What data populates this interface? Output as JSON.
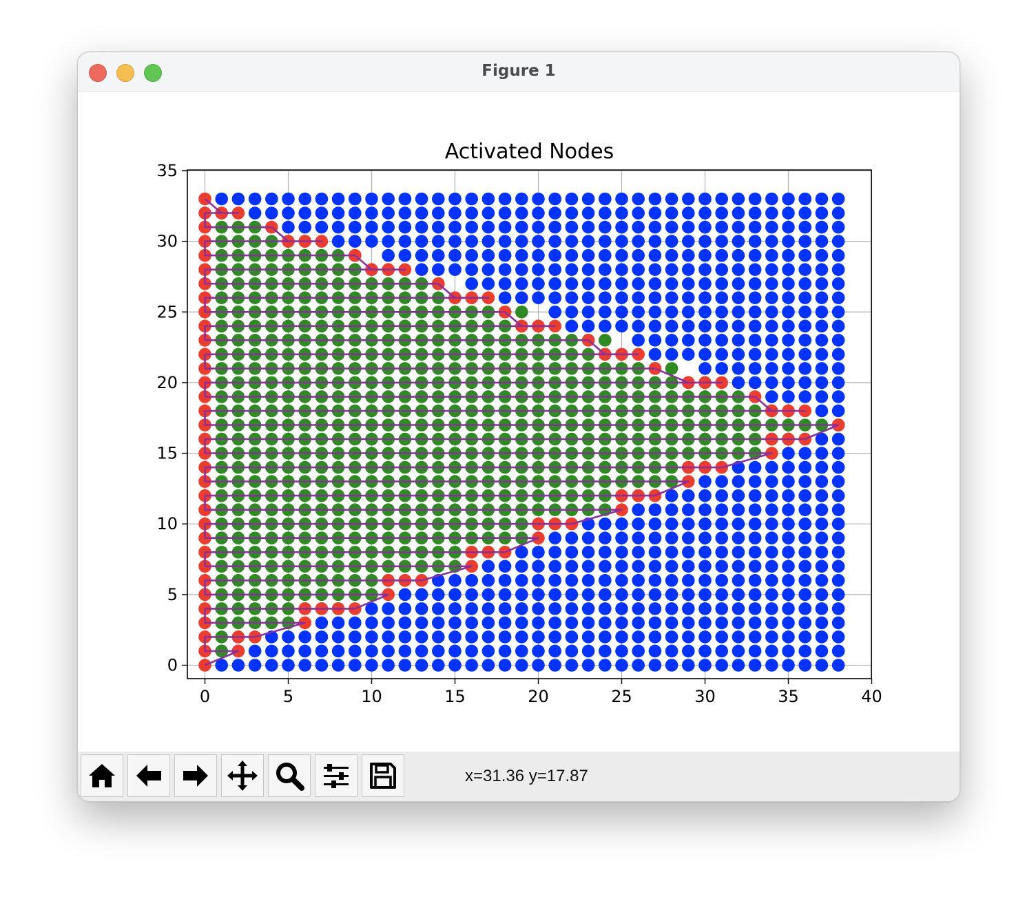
{
  "window": {
    "title": "Figure 1"
  },
  "toolbar": {
    "buttons": [
      {
        "name": "home-button",
        "icon": "home-icon",
        "tooltip": "Reset original view"
      },
      {
        "name": "back-button",
        "icon": "arrow-left-icon",
        "tooltip": "Back to previous view"
      },
      {
        "name": "forward-button",
        "icon": "arrow-right-icon",
        "tooltip": "Forward to next view"
      },
      {
        "name": "pan-button",
        "icon": "move-icon",
        "tooltip": "Pan axes"
      },
      {
        "name": "zoom-button",
        "icon": "magnifier-icon",
        "tooltip": "Zoom to rectangle"
      },
      {
        "name": "configure-button",
        "icon": "sliders-icon",
        "tooltip": "Configure subplots"
      },
      {
        "name": "save-button",
        "icon": "floppy-disk-icon",
        "tooltip": "Save the figure"
      }
    ],
    "coordinates": "x=31.36 y=17.87"
  },
  "colors": {
    "blue": "#0433ff",
    "green": "#2e8b22",
    "red": "#ee3c2c",
    "path": "#8b2fa0",
    "grid": "#b0b0b0"
  },
  "chart_data": {
    "type": "scatter",
    "title": "Activated Nodes",
    "xlabel": "",
    "ylabel": "",
    "xlim": [
      -1,
      40
    ],
    "ylim": [
      -1,
      35
    ],
    "xticks": [
      0,
      5,
      10,
      15,
      20,
      25,
      30,
      35,
      40
    ],
    "yticks": [
      0,
      5,
      10,
      15,
      20,
      25,
      30,
      35
    ],
    "grid": true,
    "grid_x": [
      0,
      38
    ],
    "grid_y": [
      0,
      33
    ],
    "series": [
      {
        "color": "blue",
        "description": "all nodes (0..38 x 0..33)"
      },
      {
        "color": "green",
        "description": "interior activated nodes (x < boundary_x[y])"
      },
      {
        "color": "red",
        "description": "boundary path nodes"
      }
    ],
    "boundary_x": [
      0,
      2,
      3,
      6,
      9,
      11,
      13,
      16,
      18,
      20,
      22,
      25,
      27,
      29,
      31,
      34,
      36,
      38,
      36,
      33,
      31,
      29,
      26,
      25,
      21,
      20,
      17,
      15,
      12,
      10,
      7,
      4,
      2,
      0
    ],
    "row_start_x": [
      1,
      1,
      3,
      7,
      10,
      12,
      14,
      17,
      19,
      21,
      23,
      26,
      28,
      30,
      32,
      35,
      37,
      38,
      37,
      34,
      32,
      30,
      27,
      26,
      22,
      21,
      18,
      16,
      13,
      11,
      8,
      5,
      3,
      1
    ],
    "path": [
      [
        0,
        0
      ],
      [
        2,
        1
      ],
      [
        0,
        1
      ],
      [
        0,
        2
      ],
      [
        2,
        2
      ],
      [
        3,
        2
      ],
      [
        6,
        3
      ],
      [
        0,
        3
      ],
      [
        0,
        4
      ],
      [
        6,
        4
      ],
      [
        7,
        4
      ],
      [
        8,
        4
      ],
      [
        9,
        4
      ],
      [
        11,
        5
      ],
      [
        0,
        5
      ],
      [
        0,
        6
      ],
      [
        11,
        6
      ],
      [
        12,
        6
      ],
      [
        13,
        6
      ],
      [
        16,
        7
      ],
      [
        0,
        7
      ],
      [
        0,
        8
      ],
      [
        16,
        8
      ],
      [
        17,
        8
      ],
      [
        18,
        8
      ],
      [
        20,
        9
      ],
      [
        0,
        9
      ],
      [
        0,
        10
      ],
      [
        20,
        10
      ],
      [
        21,
        10
      ],
      [
        22,
        10
      ],
      [
        25,
        11
      ],
      [
        0,
        11
      ],
      [
        0,
        12
      ],
      [
        25,
        12
      ],
      [
        26,
        12
      ],
      [
        27,
        12
      ],
      [
        29,
        13
      ],
      [
        0,
        13
      ],
      [
        0,
        14
      ],
      [
        29,
        14
      ],
      [
        30,
        14
      ],
      [
        31,
        14
      ],
      [
        34,
        15
      ],
      [
        0,
        15
      ],
      [
        0,
        16
      ],
      [
        34,
        16
      ],
      [
        35,
        16
      ],
      [
        36,
        16
      ],
      [
        38,
        17
      ],
      [
        0,
        17
      ],
      [
        0,
        18
      ],
      [
        36,
        18
      ],
      [
        35,
        18
      ],
      [
        34,
        18
      ],
      [
        33,
        19
      ],
      [
        0,
        19
      ],
      [
        0,
        20
      ],
      [
        31,
        20
      ],
      [
        30,
        20
      ],
      [
        29,
        20
      ],
      [
        27,
        21
      ],
      [
        0,
        21
      ],
      [
        0,
        22
      ],
      [
        26,
        22
      ],
      [
        25,
        22
      ],
      [
        24,
        22
      ],
      [
        23,
        23
      ],
      [
        0,
        23
      ],
      [
        0,
        24
      ],
      [
        21,
        24
      ],
      [
        20,
        24
      ],
      [
        19,
        24
      ],
      [
        18,
        25
      ],
      [
        0,
        25
      ],
      [
        0,
        26
      ],
      [
        17,
        26
      ],
      [
        16,
        26
      ],
      [
        15,
        26
      ],
      [
        14,
        27
      ],
      [
        0,
        27
      ],
      [
        0,
        28
      ],
      [
        12,
        28
      ],
      [
        11,
        28
      ],
      [
        10,
        28
      ],
      [
        9,
        29
      ],
      [
        0,
        29
      ],
      [
        0,
        30
      ],
      [
        7,
        30
      ],
      [
        6,
        30
      ],
      [
        5,
        30
      ],
      [
        4,
        31
      ],
      [
        0,
        31
      ],
      [
        0,
        32
      ],
      [
        2,
        32
      ],
      [
        1,
        32
      ],
      [
        0,
        33
      ]
    ]
  }
}
